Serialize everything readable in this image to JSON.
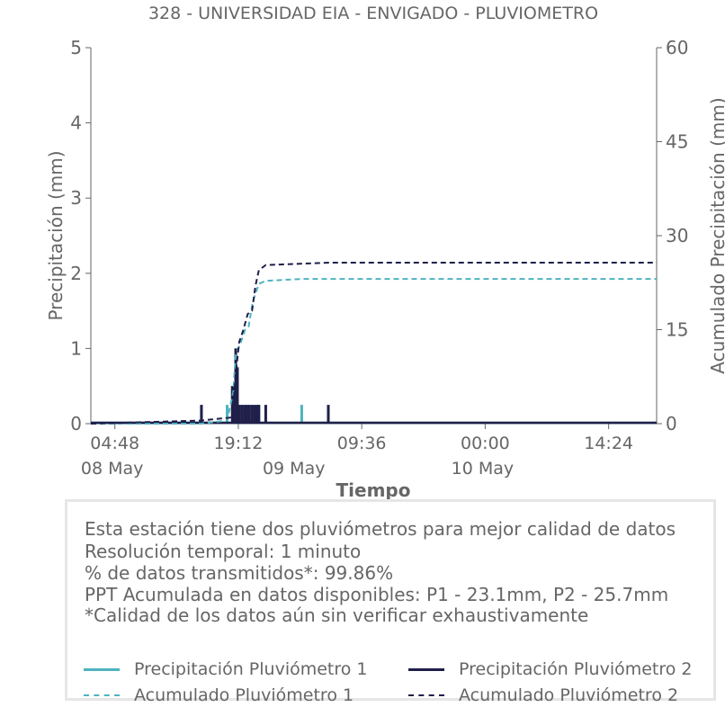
{
  "chart_data": {
    "type": "line",
    "title": "328 - UNIVERSIDAD EIA - ENVIGADO - PLUVIOMETRO",
    "xlabel": "Tiempo",
    "ylabel": "Precipitación (mm)",
    "y2label": "Acumulado Precipitación (mm)",
    "ylim": [
      0,
      5
    ],
    "y2lim": [
      0,
      60
    ],
    "yticks": [
      "0",
      "1",
      "2",
      "3",
      "4",
      "5"
    ],
    "y2ticks": [
      "0",
      "15",
      "30",
      "45",
      "60"
    ],
    "xlim_hours": [
      0,
      66
    ],
    "xticks": [
      {
        "t": 2.8,
        "label": "04:48",
        "date": "08 May"
      },
      {
        "t": 17.2,
        "label": "19:12",
        "date": ""
      },
      {
        "t": 24.0,
        "label": "",
        "date": "09 May"
      },
      {
        "t": 31.6,
        "label": "09:36",
        "date": ""
      },
      {
        "t": 46.0,
        "label": "00:00",
        "date": "10 May"
      },
      {
        "t": 60.4,
        "label": "14:24",
        "date": ""
      }
    ],
    "series": [
      {
        "name": "Precipitación Pluviómetro 1",
        "color": "#4fb3bf",
        "style": "solid",
        "axis": "left",
        "bars": [
          {
            "t": 12.9,
            "v": 0.25
          },
          {
            "t": 15.9,
            "v": 0.25
          },
          {
            "t": 16.6,
            "v": 0.5
          },
          {
            "t": 16.9,
            "v": 1.0
          },
          {
            "t": 17.2,
            "v": 0.25
          },
          {
            "t": 17.6,
            "v": 0.25
          },
          {
            "t": 18.4,
            "v": 0.25
          },
          {
            "t": 19.6,
            "v": 0.25
          },
          {
            "t": 24.6,
            "v": 0.25
          }
        ]
      },
      {
        "name": "Precipitación Pluviómetro 2",
        "color": "#1f1f4a",
        "style": "solid",
        "axis": "left",
        "bars": [
          {
            "t": 12.9,
            "v": 0.25
          },
          {
            "t": 16.5,
            "v": 0.5
          },
          {
            "t": 16.7,
            "v": 0.5
          },
          {
            "t": 16.9,
            "v": 1.0
          },
          {
            "t": 17.1,
            "v": 0.75
          },
          {
            "t": 17.3,
            "v": 0.25
          },
          {
            "t": 17.6,
            "v": 0.25
          },
          {
            "t": 17.9,
            "v": 0.25
          },
          {
            "t": 18.2,
            "v": 0.25
          },
          {
            "t": 18.5,
            "v": 0.25
          },
          {
            "t": 18.8,
            "v": 0.25
          },
          {
            "t": 19.1,
            "v": 0.25
          },
          {
            "t": 19.4,
            "v": 0.25
          },
          {
            "t": 19.6,
            "v": 0.25
          },
          {
            "t": 20.4,
            "v": 0.25
          },
          {
            "t": 27.7,
            "v": 0.25
          }
        ]
      },
      {
        "name": "Acumulado Pluviómetro 1",
        "color": "#4fb3bf",
        "style": "dashed",
        "axis": "right",
        "x": [
          0,
          12.9,
          15.9,
          16.6,
          16.9,
          17.5,
          18.0,
          18.4,
          18.9,
          19.6,
          20.4,
          24.6,
          66
        ],
        "values": [
          0,
          0,
          0.5,
          5,
          11,
          13,
          15,
          15.5,
          19.5,
          22.3,
          22.8,
          23.1,
          23.1
        ]
      },
      {
        "name": "Acumulado Pluviómetro 2",
        "color": "#1f1f4a",
        "style": "dashed",
        "axis": "right",
        "x": [
          0,
          12.9,
          16.5,
          16.9,
          17.3,
          17.8,
          18.3,
          18.8,
          19.2,
          19.6,
          20.4,
          27.7,
          66
        ],
        "values": [
          0,
          0.5,
          1,
          8,
          13,
          15,
          17.5,
          18,
          22,
          24.5,
          25.3,
          25.7,
          25.7
        ]
      }
    ],
    "grid": false,
    "legend_placement": "bottom"
  },
  "info": {
    "lines": [
      "Esta estación tiene dos pluviómetros para mejor calidad de datos",
      "Resolución temporal: 1 minuto",
      "% de datos transmitidos*: 99.86%",
      "PPT Acumulada en datos disponibles: P1 - 23.1mm, P2 - 25.7mm",
      "*Calidad de los datos aún sin verificar exhaustivamente"
    ]
  },
  "legend": [
    {
      "label": "Precipitación Pluviómetro 1",
      "color": "#4fb3bf",
      "style": "solid"
    },
    {
      "label": "Precipitación Pluviómetro 2",
      "color": "#1f1f4a",
      "style": "solid"
    },
    {
      "label": "Acumulado Pluviómetro 1",
      "color": "#4fb3bf",
      "style": "dashed"
    },
    {
      "label": "Acumulado Pluviómetro 2",
      "color": "#1f1f4a",
      "style": "dashed"
    }
  ]
}
